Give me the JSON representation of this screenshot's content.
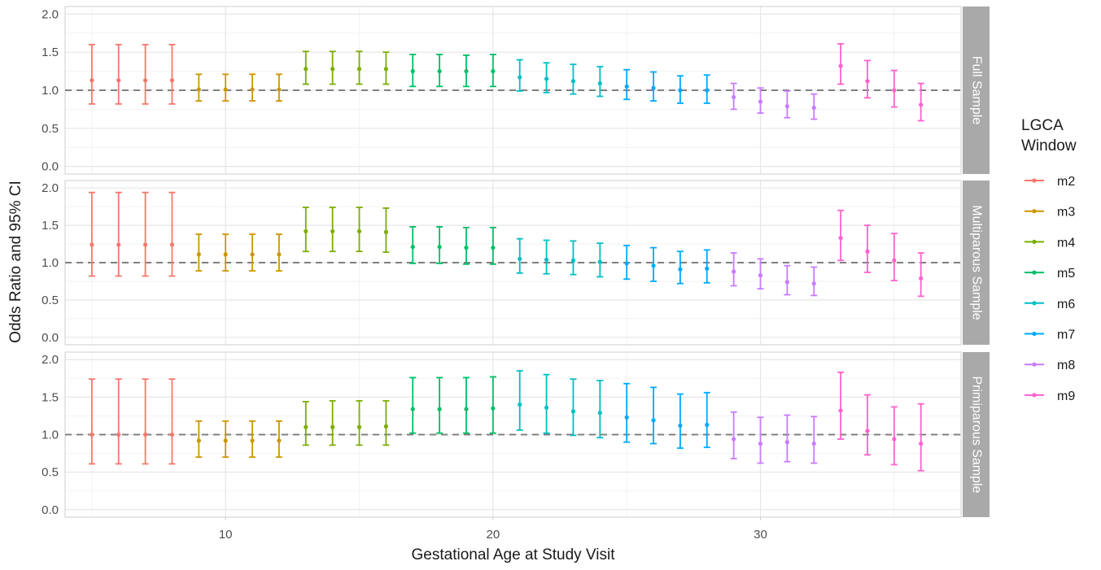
{
  "chart_data": {
    "type": "errorbar",
    "xlabel": "Gestational Age at Study Visit",
    "ylabel": "Odds Ratio and 95% CI",
    "x_ticks": [
      10,
      20,
      30
    ],
    "y_ticks": [
      0.0,
      0.5,
      1.0,
      1.5,
      2.0
    ],
    "y_tick_labels": [
      "0.0",
      "0.5",
      "1.0",
      "1.5",
      "2.0"
    ],
    "xlim": [
      4,
      37.5
    ],
    "ylim": [
      -0.1,
      2.1
    ],
    "reference_line": 1.0,
    "grid": true,
    "legend": {
      "title_lines": [
        "LGCA",
        "Window"
      ],
      "placement": "right",
      "entries": [
        {
          "label": "m2",
          "color": "#f8766d"
        },
        {
          "label": "m3",
          "color": "#cd9600"
        },
        {
          "label": "m4",
          "color": "#7cae00"
        },
        {
          "label": "m5",
          "color": "#00be67"
        },
        {
          "label": "m6",
          "color": "#00bfc4"
        },
        {
          "label": "m7",
          "color": "#00a9ff"
        },
        {
          "label": "m8",
          "color": "#c77cff"
        },
        {
          "label": "m9",
          "color": "#ff61cc"
        }
      ]
    },
    "window_by_x": {
      "5": "m2",
      "6": "m2",
      "7": "m2",
      "8": "m2",
      "9": "m3",
      "10": "m3",
      "11": "m3",
      "12": "m3",
      "13": "m4",
      "14": "m4",
      "15": "m4",
      "16": "m4",
      "17": "m5",
      "18": "m5",
      "19": "m5",
      "20": "m5",
      "21": "m6",
      "22": "m6",
      "23": "m6",
      "24": "m6",
      "25": "m7",
      "26": "m7",
      "27": "m7",
      "28": "m7",
      "29": "m8",
      "30": "m8",
      "31": "m8",
      "32": "m8",
      "33": "m9",
      "34": "m9",
      "35": "m9",
      "36": "m9"
    },
    "panels": [
      {
        "label": "Full Sample",
        "points": [
          {
            "x": 5,
            "or": 1.13,
            "lo": 0.82,
            "hi": 1.6
          },
          {
            "x": 6,
            "or": 1.13,
            "lo": 0.82,
            "hi": 1.6
          },
          {
            "x": 7,
            "or": 1.13,
            "lo": 0.82,
            "hi": 1.6
          },
          {
            "x": 8,
            "or": 1.13,
            "lo": 0.82,
            "hi": 1.6
          },
          {
            "x": 9,
            "or": 1.01,
            "lo": 0.86,
            "hi": 1.21
          },
          {
            "x": 10,
            "or": 1.01,
            "lo": 0.86,
            "hi": 1.21
          },
          {
            "x": 11,
            "or": 1.01,
            "lo": 0.86,
            "hi": 1.21
          },
          {
            "x": 12,
            "or": 1.01,
            "lo": 0.86,
            "hi": 1.21
          },
          {
            "x": 13,
            "or": 1.28,
            "lo": 1.08,
            "hi": 1.51
          },
          {
            "x": 14,
            "or": 1.28,
            "lo": 1.08,
            "hi": 1.51
          },
          {
            "x": 15,
            "or": 1.28,
            "lo": 1.08,
            "hi": 1.51
          },
          {
            "x": 16,
            "or": 1.28,
            "lo": 1.08,
            "hi": 1.5
          },
          {
            "x": 17,
            "or": 1.25,
            "lo": 1.05,
            "hi": 1.47
          },
          {
            "x": 18,
            "or": 1.25,
            "lo": 1.05,
            "hi": 1.47
          },
          {
            "x": 19,
            "or": 1.25,
            "lo": 1.05,
            "hi": 1.46
          },
          {
            "x": 20,
            "or": 1.25,
            "lo": 1.05,
            "hi": 1.47
          },
          {
            "x": 21,
            "or": 1.17,
            "lo": 0.99,
            "hi": 1.4
          },
          {
            "x": 22,
            "or": 1.15,
            "lo": 0.97,
            "hi": 1.36
          },
          {
            "x": 23,
            "or": 1.12,
            "lo": 0.95,
            "hi": 1.34
          },
          {
            "x": 24,
            "or": 1.09,
            "lo": 0.92,
            "hi": 1.31
          },
          {
            "x": 25,
            "or": 1.05,
            "lo": 0.88,
            "hi": 1.27
          },
          {
            "x": 26,
            "or": 1.03,
            "lo": 0.86,
            "hi": 1.24
          },
          {
            "x": 27,
            "or": 1.0,
            "lo": 0.83,
            "hi": 1.19
          },
          {
            "x": 28,
            "or": 1.0,
            "lo": 0.83,
            "hi": 1.2
          },
          {
            "x": 29,
            "or": 0.91,
            "lo": 0.75,
            "hi": 1.09
          },
          {
            "x": 30,
            "or": 0.85,
            "lo": 0.7,
            "hi": 1.03
          },
          {
            "x": 31,
            "or": 0.79,
            "lo": 0.64,
            "hi": 0.99
          },
          {
            "x": 32,
            "or": 0.77,
            "lo": 0.62,
            "hi": 0.95
          },
          {
            "x": 33,
            "or": 1.32,
            "lo": 1.08,
            "hi": 1.61
          },
          {
            "x": 34,
            "or": 1.12,
            "lo": 0.9,
            "hi": 1.39
          },
          {
            "x": 35,
            "or": 1.0,
            "lo": 0.78,
            "hi": 1.26
          },
          {
            "x": 36,
            "or": 0.81,
            "lo": 0.6,
            "hi": 1.09
          }
        ]
      },
      {
        "label": "Multiparous Sample",
        "points": [
          {
            "x": 5,
            "or": 1.24,
            "lo": 0.82,
            "hi": 1.94
          },
          {
            "x": 6,
            "or": 1.24,
            "lo": 0.82,
            "hi": 1.94
          },
          {
            "x": 7,
            "or": 1.24,
            "lo": 0.82,
            "hi": 1.94
          },
          {
            "x": 8,
            "or": 1.24,
            "lo": 0.82,
            "hi": 1.94
          },
          {
            "x": 9,
            "or": 1.11,
            "lo": 0.89,
            "hi": 1.38
          },
          {
            "x": 10,
            "or": 1.11,
            "lo": 0.89,
            "hi": 1.38
          },
          {
            "x": 11,
            "or": 1.11,
            "lo": 0.89,
            "hi": 1.38
          },
          {
            "x": 12,
            "or": 1.11,
            "lo": 0.89,
            "hi": 1.38
          },
          {
            "x": 13,
            "or": 1.42,
            "lo": 1.15,
            "hi": 1.74
          },
          {
            "x": 14,
            "or": 1.42,
            "lo": 1.15,
            "hi": 1.74
          },
          {
            "x": 15,
            "or": 1.42,
            "lo": 1.15,
            "hi": 1.74
          },
          {
            "x": 16,
            "or": 1.41,
            "lo": 1.14,
            "hi": 1.73
          },
          {
            "x": 17,
            "or": 1.21,
            "lo": 0.99,
            "hi": 1.48
          },
          {
            "x": 18,
            "or": 1.21,
            "lo": 0.99,
            "hi": 1.48
          },
          {
            "x": 19,
            "or": 1.2,
            "lo": 0.98,
            "hi": 1.47
          },
          {
            "x": 20,
            "or": 1.2,
            "lo": 0.98,
            "hi": 1.47
          },
          {
            "x": 21,
            "or": 1.05,
            "lo": 0.86,
            "hi": 1.32
          },
          {
            "x": 22,
            "or": 1.04,
            "lo": 0.85,
            "hi": 1.3
          },
          {
            "x": 23,
            "or": 1.03,
            "lo": 0.84,
            "hi": 1.29
          },
          {
            "x": 24,
            "or": 1.01,
            "lo": 0.81,
            "hi": 1.26
          },
          {
            "x": 25,
            "or": 0.99,
            "lo": 0.78,
            "hi": 1.23
          },
          {
            "x": 26,
            "or": 0.96,
            "lo": 0.75,
            "hi": 1.2
          },
          {
            "x": 27,
            "or": 0.91,
            "lo": 0.72,
            "hi": 1.15
          },
          {
            "x": 28,
            "or": 0.92,
            "lo": 0.73,
            "hi": 1.17
          },
          {
            "x": 29,
            "or": 0.88,
            "lo": 0.69,
            "hi": 1.13
          },
          {
            "x": 30,
            "or": 0.83,
            "lo": 0.65,
            "hi": 1.05
          },
          {
            "x": 31,
            "or": 0.74,
            "lo": 0.57,
            "hi": 0.96
          },
          {
            "x": 32,
            "or": 0.72,
            "lo": 0.56,
            "hi": 0.94
          },
          {
            "x": 33,
            "or": 1.33,
            "lo": 1.03,
            "hi": 1.7
          },
          {
            "x": 34,
            "or": 1.15,
            "lo": 0.87,
            "hi": 1.5
          },
          {
            "x": 35,
            "or": 1.03,
            "lo": 0.76,
            "hi": 1.39
          },
          {
            "x": 36,
            "or": 0.79,
            "lo": 0.55,
            "hi": 1.13
          }
        ]
      },
      {
        "label": "Primiparous Sample",
        "points": [
          {
            "x": 5,
            "or": 1.0,
            "lo": 0.61,
            "hi": 1.74
          },
          {
            "x": 6,
            "or": 1.0,
            "lo": 0.61,
            "hi": 1.74
          },
          {
            "x": 7,
            "or": 1.0,
            "lo": 0.61,
            "hi": 1.74
          },
          {
            "x": 8,
            "or": 1.0,
            "lo": 0.61,
            "hi": 1.74
          },
          {
            "x": 9,
            "or": 0.92,
            "lo": 0.7,
            "hi": 1.18
          },
          {
            "x": 10,
            "or": 0.92,
            "lo": 0.7,
            "hi": 1.18
          },
          {
            "x": 11,
            "or": 0.92,
            "lo": 0.7,
            "hi": 1.18
          },
          {
            "x": 12,
            "or": 0.92,
            "lo": 0.7,
            "hi": 1.18
          },
          {
            "x": 13,
            "or": 1.1,
            "lo": 0.86,
            "hi": 1.44
          },
          {
            "x": 14,
            "or": 1.1,
            "lo": 0.86,
            "hi": 1.45
          },
          {
            "x": 15,
            "or": 1.1,
            "lo": 0.86,
            "hi": 1.45
          },
          {
            "x": 16,
            "or": 1.11,
            "lo": 0.86,
            "hi": 1.45
          },
          {
            "x": 17,
            "or": 1.34,
            "lo": 1.02,
            "hi": 1.76
          },
          {
            "x": 18,
            "or": 1.34,
            "lo": 1.02,
            "hi": 1.76
          },
          {
            "x": 19,
            "or": 1.34,
            "lo": 1.02,
            "hi": 1.76
          },
          {
            "x": 20,
            "or": 1.35,
            "lo": 1.02,
            "hi": 1.77
          },
          {
            "x": 21,
            "or": 1.4,
            "lo": 1.06,
            "hi": 1.85
          },
          {
            "x": 22,
            "or": 1.36,
            "lo": 1.02,
            "hi": 1.8
          },
          {
            "x": 23,
            "or": 1.31,
            "lo": 0.99,
            "hi": 1.74
          },
          {
            "x": 24,
            "or": 1.29,
            "lo": 0.96,
            "hi": 1.72
          },
          {
            "x": 25,
            "or": 1.23,
            "lo": 0.9,
            "hi": 1.68
          },
          {
            "x": 26,
            "or": 1.19,
            "lo": 0.88,
            "hi": 1.63
          },
          {
            "x": 27,
            "or": 1.12,
            "lo": 0.82,
            "hi": 1.54
          },
          {
            "x": 28,
            "or": 1.13,
            "lo": 0.83,
            "hi": 1.56
          },
          {
            "x": 29,
            "or": 0.94,
            "lo": 0.68,
            "hi": 1.3
          },
          {
            "x": 30,
            "or": 0.88,
            "lo": 0.62,
            "hi": 1.23
          },
          {
            "x": 31,
            "or": 0.9,
            "lo": 0.64,
            "hi": 1.26
          },
          {
            "x": 32,
            "or": 0.88,
            "lo": 0.62,
            "hi": 1.24
          },
          {
            "x": 33,
            "or": 1.32,
            "lo": 0.94,
            "hi": 1.83
          },
          {
            "x": 34,
            "or": 1.05,
            "lo": 0.73,
            "hi": 1.53
          },
          {
            "x": 35,
            "or": 0.94,
            "lo": 0.6,
            "hi": 1.37
          },
          {
            "x": 36,
            "or": 0.88,
            "lo": 0.52,
            "hi": 1.41
          }
        ]
      }
    ]
  }
}
